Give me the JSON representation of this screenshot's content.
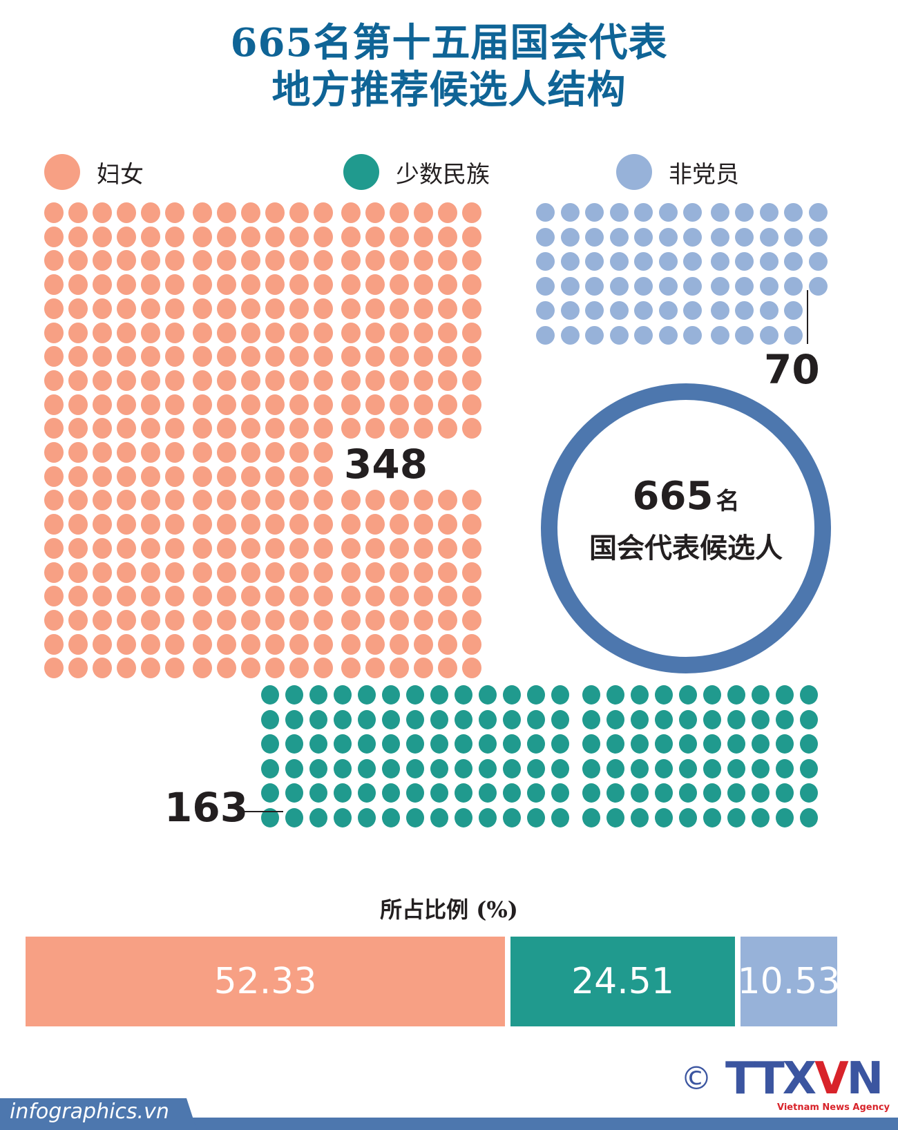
{
  "title": {
    "line1": "665名第十五届国会代表",
    "line2": "地方推荐候选人结构"
  },
  "legend": [
    {
      "label": "妇女",
      "color": "#f7a084"
    },
    {
      "label": "少数民族",
      "color": "#209a8e"
    },
    {
      "label": "非党员",
      "color": "#97b2d9"
    }
  ],
  "center": {
    "total": "665",
    "unit": "名",
    "label": "国会代表候选人",
    "ring_color": "#4d77ae"
  },
  "counts": {
    "women": "348",
    "ethnic_minority": "163",
    "non_party": "70"
  },
  "percent_title": "所占比例 (%)",
  "bars": [
    {
      "label": "52.33",
      "color": "#f7a084"
    },
    {
      "label": "24.51",
      "color": "#209a8e"
    },
    {
      "label": "10.53",
      "color": "#97b2d9"
    }
  ],
  "footer": {
    "site": "infographics.vn",
    "copyright": "©",
    "logo": "TTXVN",
    "logo_sub": "Vietnam News Agency"
  },
  "chart_data": {
    "type": "waffle",
    "title": "665名第十五届国会代表地方推荐候选人结构",
    "total": 665,
    "categories": [
      "妇女",
      "少数民族",
      "非党员"
    ],
    "values": [
      348,
      163,
      70
    ],
    "percentages": [
      52.33,
      24.51,
      10.53
    ],
    "colors": [
      "#f7a084",
      "#209a8e",
      "#97b2d9"
    ],
    "secondary_title": "所占比例 (%)",
    "legend_position": "top"
  }
}
